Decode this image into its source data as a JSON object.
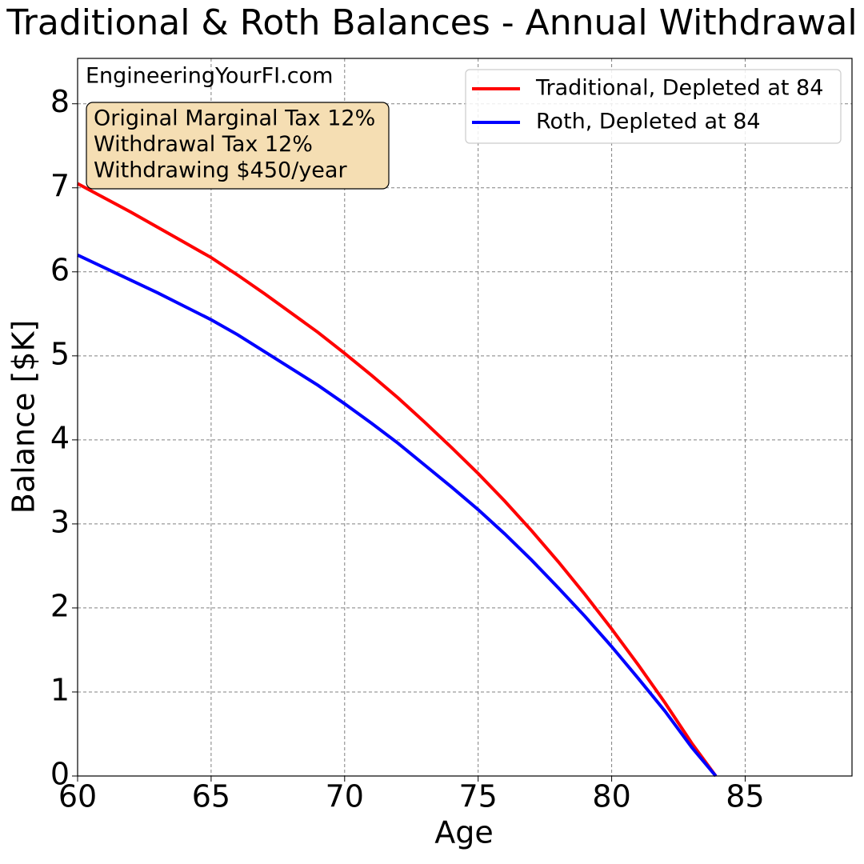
{
  "chart_data": {
    "type": "line",
    "title": "Traditional & Roth Balances - Annual Withdrawal",
    "watermark": "EngineeringYourFI.com",
    "annotation": [
      "Original Marginal Tax 12%",
      "Withdrawal Tax 12%",
      "Withdrawing $450/year"
    ],
    "xlabel": "Age",
    "ylabel": "Balance [$K]",
    "x": [
      60,
      61,
      62,
      63,
      64,
      65,
      66,
      67,
      68,
      69,
      70,
      71,
      72,
      73,
      74,
      75,
      76,
      77,
      78,
      79,
      80,
      81,
      82,
      83,
      83.9
    ],
    "series": [
      {
        "name": "Traditional, Depleted at 84",
        "color": "#ff0000",
        "values": [
          7.05,
          6.88,
          6.71,
          6.53,
          6.35,
          6.17,
          5.96,
          5.74,
          5.51,
          5.28,
          5.03,
          4.77,
          4.5,
          4.21,
          3.91,
          3.6,
          3.27,
          2.92,
          2.55,
          2.16,
          1.75,
          1.32,
          0.87,
          0.39,
          0
        ]
      },
      {
        "name": "Roth, Depleted at 84",
        "color": "#0000ff",
        "values": [
          6.2,
          6.05,
          5.9,
          5.75,
          5.59,
          5.43,
          5.25,
          5.05,
          4.85,
          4.65,
          4.43,
          4.2,
          3.96,
          3.7,
          3.44,
          3.17,
          2.88,
          2.57,
          2.24,
          1.9,
          1.54,
          1.16,
          0.77,
          0.34,
          0
        ]
      }
    ],
    "xlim": [
      60,
      89
    ],
    "xticks": [
      60,
      65,
      70,
      75,
      80,
      85
    ],
    "ylim": [
      0,
      8.54
    ],
    "yticks": [
      0,
      1,
      2,
      3,
      4,
      5,
      6,
      7,
      8
    ],
    "grid": true,
    "legend": "upper right"
  }
}
